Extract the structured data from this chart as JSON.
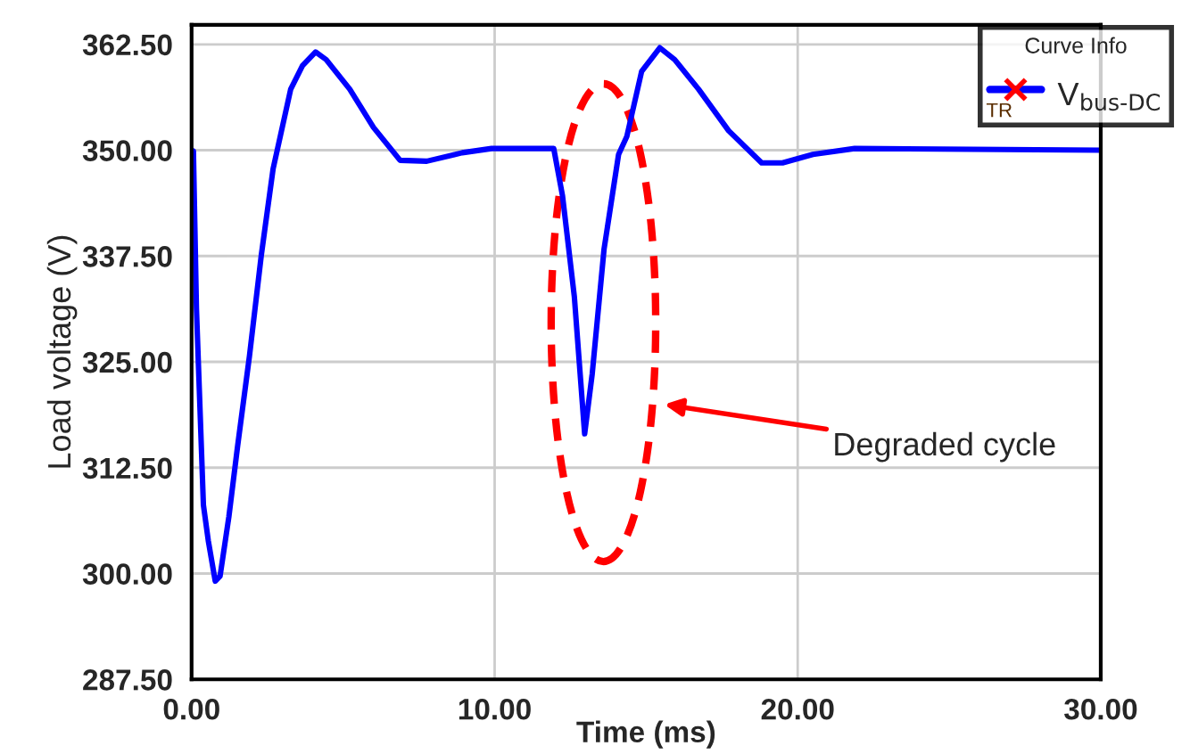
{
  "chart_data": {
    "type": "line",
    "xlabel": "Time (ms)",
    "ylabel": "Load voltage (V)",
    "legend_title": "Curve Info",
    "legend": "top right",
    "x": [
      0,
      0.06,
      0.16,
      0.39,
      0.55,
      0.78,
      0.94,
      1.23,
      1.52,
      1.91,
      2.3,
      2.69,
      3.27,
      3.66,
      4.09,
      4.44,
      5.22,
      6.0,
      6.88,
      7.76,
      8.93,
      9.9,
      11.95,
      12.24,
      12.63,
      12.97,
      13.22,
      13.61,
      14.09,
      14.36,
      14.85,
      15.45,
      15.94,
      16.73,
      17.72,
      18.81,
      19.5,
      20.5,
      21.88,
      30
    ],
    "series": [
      {
        "name": "V$_{bus-DC}$",
        "color": "#0000ff",
        "values": [
          350,
          349.9,
          331.3,
          308.1,
          303.9,
          299.1,
          299.7,
          306.7,
          315.1,
          325.7,
          337.6,
          347.8,
          357.2,
          360.0,
          361.6,
          360.7,
          357.2,
          352.7,
          348.8,
          348.7,
          349.7,
          350.2,
          350.2,
          344.6,
          332.7,
          316.5,
          323.6,
          338.3,
          349.5,
          351.6,
          359.3,
          362.1,
          360.7,
          357.2,
          352.3,
          348.5,
          348.5,
          349.5,
          350.2,
          350
        ]
      }
    ],
    "xlim": [
      0,
      30
    ],
    "xticks": [
      {
        "value": 0,
        "label": "0.00"
      },
      {
        "value": 10,
        "label": "10.00"
      },
      {
        "value": 20,
        "label": "20.00"
      },
      {
        "value": 30,
        "label": "30.00"
      }
    ],
    "ylim": [
      287.5,
      364.8
    ],
    "yticks": [
      {
        "value": 287.5,
        "label": "287.50"
      },
      {
        "value": 300,
        "label": "300.00"
      },
      {
        "value": 312.5,
        "label": "312.50"
      },
      {
        "value": 325,
        "label": "325.00"
      },
      {
        "value": 337.5,
        "label": "337.50"
      },
      {
        "value": 350,
        "label": "350.00"
      },
      {
        "value": 362.5,
        "label": "362.50"
      }
    ],
    "grid": true,
    "marker": "none",
    "line_style": "solid",
    "annotations": [
      "Degraded cycle",
      "TR"
    ]
  }
}
